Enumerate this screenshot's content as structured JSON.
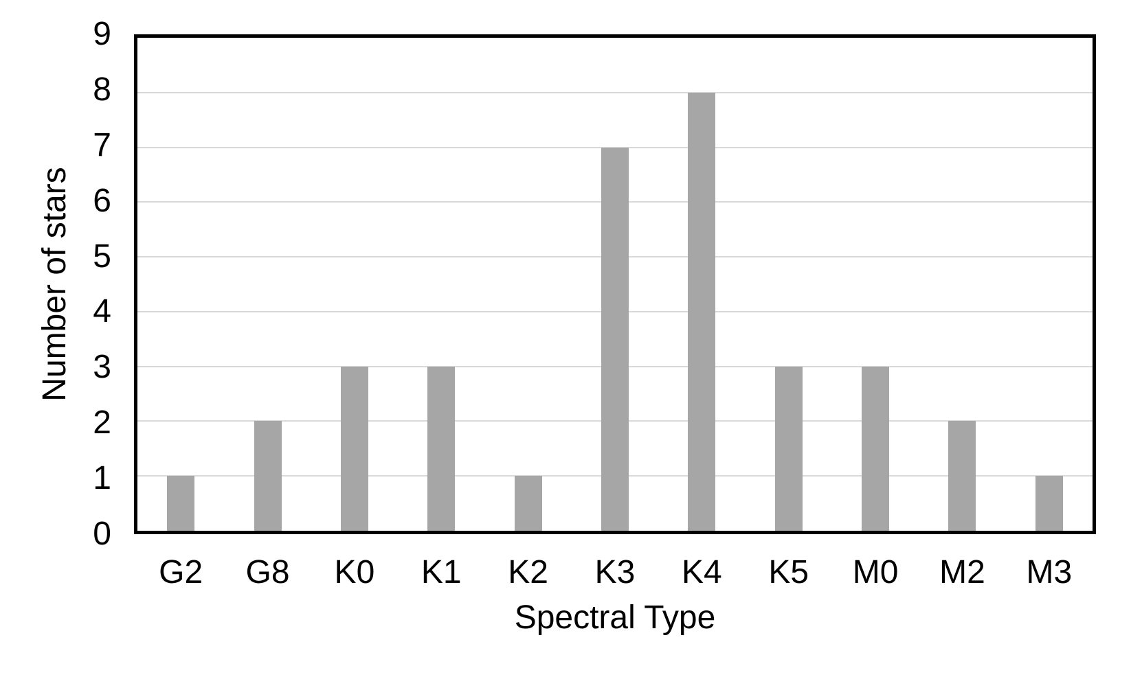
{
  "chart_data": {
    "type": "bar",
    "categories": [
      "G2",
      "G8",
      "K0",
      "K1",
      "K2",
      "K3",
      "K4",
      "K5",
      "M0",
      "M2",
      "M3"
    ],
    "values": [
      1,
      2,
      3,
      3,
      1,
      7,
      8,
      3,
      3,
      2,
      1
    ],
    "title": "",
    "xlabel": "Spectral Type",
    "ylabel": "Number of stars",
    "ylim": [
      0,
      9
    ],
    "ytick_step": 1,
    "yticks": [
      0,
      1,
      2,
      3,
      4,
      5,
      6,
      7,
      8,
      9
    ],
    "grid": "horizontal",
    "legend_position": "none",
    "colors": {
      "bar": "#A6A6A6",
      "gridline": "#D9D9D9",
      "frame": "#000000",
      "text": "#000000",
      "background": "#FFFFFF"
    }
  }
}
